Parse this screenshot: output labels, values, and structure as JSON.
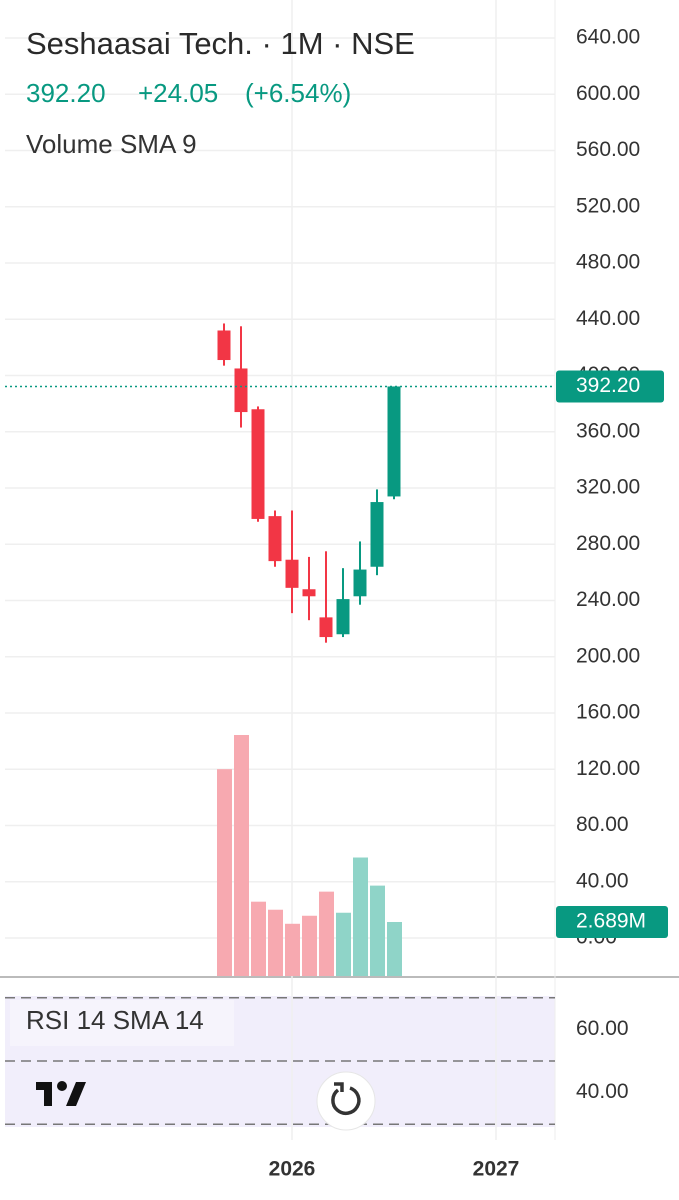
{
  "chart_data": {
    "type": "candlestick",
    "title": "Seshaasai Tech. · 1M · NSE",
    "last_price": "392.20",
    "change": "+24.05",
    "change_pct": "(+6.54%)",
    "volume_title": "Volume SMA 9",
    "categories": [
      null,
      null,
      null,
      null,
      null,
      null,
      null,
      null,
      null,
      null,
      null
    ],
    "open": [
      432,
      405,
      376,
      300,
      269,
      248,
      228,
      216,
      243,
      264,
      314
    ],
    "high": [
      437,
      435,
      378,
      304,
      304,
      271,
      275,
      263,
      282,
      319,
      392.2
    ],
    "low": [
      407,
      363,
      296,
      264,
      231,
      226,
      210,
      214,
      237,
      258,
      312
    ],
    "close": [
      411,
      374,
      298,
      268,
      249,
      243,
      214,
      241,
      262,
      310,
      392.2
    ],
    "up_color": "#089981",
    "down_color": "#f23645",
    "volume": {
      "values": [
        10.3,
        12.0,
        3.7,
        3.3,
        2.6,
        3.0,
        4.2,
        3.15,
        5.9,
        4.5,
        2.689
      ],
      "last_label": "2.689M",
      "up_color": "#8fd4c8",
      "down_color": "#f7a9b0"
    },
    "ylim": [
      0,
      640
    ],
    "yticks": [
      {
        "value": 0,
        "label": "0.00"
      },
      {
        "value": 40,
        "label": "40.00"
      },
      {
        "value": 80,
        "label": "80.00"
      },
      {
        "value": 120,
        "label": "120.00"
      },
      {
        "value": 160,
        "label": "160.00"
      },
      {
        "value": 200,
        "label": "200.00"
      },
      {
        "value": 240,
        "label": "240.00"
      },
      {
        "value": 280,
        "label": "280.00"
      },
      {
        "value": 320,
        "label": "320.00"
      },
      {
        "value": 360,
        "label": "360.00"
      },
      {
        "value": 400,
        "label": "400.00"
      },
      {
        "value": 440,
        "label": "440.00"
      },
      {
        "value": 480,
        "label": "480.00"
      },
      {
        "value": 520,
        "label": "520.00"
      },
      {
        "value": 560,
        "label": "560.00"
      },
      {
        "value": 600,
        "label": "600.00"
      },
      {
        "value": 640,
        "label": "640.00"
      }
    ],
    "xticks": [
      {
        "value": 4,
        "label": "2026"
      },
      {
        "value": 16,
        "label": "2027"
      }
    ],
    "grid": true,
    "rsi": {
      "title": "RSI 14 SMA 14",
      "ylim": [
        25,
        75
      ],
      "yticks": [
        {
          "value": 60,
          "label": "60.00"
        },
        {
          "value": 40,
          "label": "40.00"
        }
      ],
      "bands": [
        70,
        50,
        30
      ]
    }
  }
}
